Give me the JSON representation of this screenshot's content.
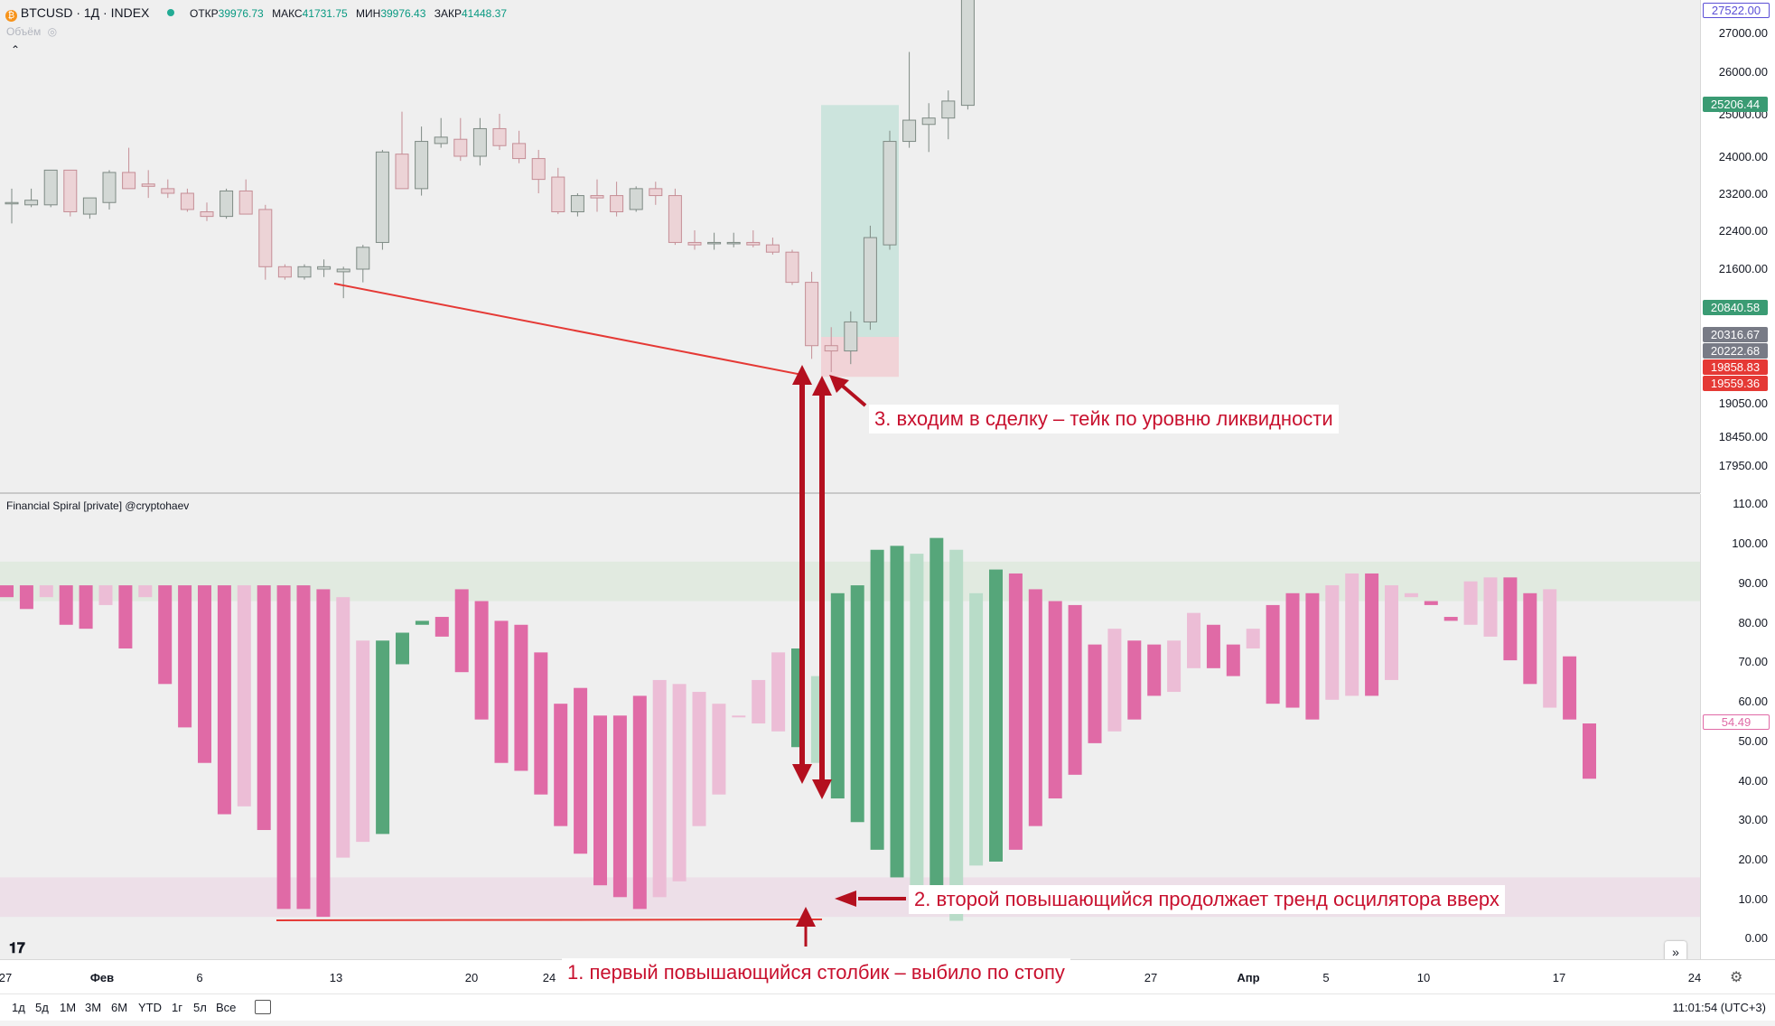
{
  "header": {
    "symbol": "BTCUSD · 1Д · INDEX",
    "ohlc": {
      "open_label": "ОТКР",
      "open": "39976.73",
      "high_label": "МАКС",
      "high": "41731.75",
      "low_label": "МИН",
      "low": "39976.43",
      "close_label": "ЗАКР",
      "close": "41448.37"
    },
    "volume_label": "Объём",
    "indicator_label": "Financial Spiral [private] @cryptohaev"
  },
  "price_axis": {
    "ticks": [
      "27000.00",
      "26000.00",
      "25000.00",
      "24000.00",
      "23200.00",
      "22400.00",
      "21600.00",
      "19050.00",
      "18450.00",
      "17950.00"
    ],
    "tags": [
      {
        "value": "27522.00",
        "color": "#ffffff",
        "text_color": "#5b4fd6"
      },
      {
        "value": "25206.44",
        "color": "#3a9b73"
      },
      {
        "value": "20840.58",
        "color": "#3a9b73"
      },
      {
        "value": "20316.67",
        "color": "#787b86"
      },
      {
        "value": "20222.68",
        "color": "#787b86"
      },
      {
        "value": "19858.83",
        "color": "#e53935"
      },
      {
        "value": "19559.36",
        "color": "#e53935"
      }
    ]
  },
  "osc_axis": {
    "ticks": [
      "110.00",
      "100.00",
      "90.00",
      "80.00",
      "70.00",
      "60.00",
      "50.00",
      "40.00",
      "30.00",
      "20.00",
      "10.00",
      "0.00"
    ],
    "last_value": "54.49"
  },
  "time_axis": {
    "labels": [
      "27",
      "Фев",
      "6",
      "13",
      "20",
      "24",
      "27",
      "Апр",
      "5",
      "10",
      "17",
      "24"
    ]
  },
  "timeframes": [
    "1д",
    "5д",
    "1М",
    "3М",
    "6М",
    "YTD",
    "1г",
    "5л",
    "Все"
  ],
  "clock": "11:01:54 (UTC+3)",
  "annotations": {
    "a1": "1. первый повышающийся столбик – выбило по стопу",
    "a2": "2. второй повышающийся продолжает тренд осцилятора вверх",
    "a3": "3. входим в сделку – тейк по уровню ликвидности"
  },
  "colors": {
    "bull_candle": "#d3d8d5",
    "bear_candle": "#ecd3d6",
    "osc_pink": "#e06aa6",
    "osc_pink_light": "#ecbdd6",
    "osc_green": "#56a67a",
    "osc_green_light": "#b8dcc8",
    "annotation_red": "#c8102e"
  },
  "chart_data": [
    {
      "type": "candlestick",
      "title": "BTCUSD · 1Д · INDEX",
      "ylim": [
        17500,
        27700
      ],
      "candles": [
        {
          "o": 23000,
          "h": 23300,
          "l": 22550,
          "c": 23000
        },
        {
          "o": 22950,
          "h": 23300,
          "l": 22900,
          "c": 23050
        },
        {
          "o": 22950,
          "h": 23600,
          "l": 22900,
          "c": 23700
        },
        {
          "o": 23700,
          "h": 23700,
          "l": 22700,
          "c": 22800
        },
        {
          "o": 22750,
          "h": 23100,
          "l": 22650,
          "c": 23100
        },
        {
          "o": 23000,
          "h": 23700,
          "l": 22850,
          "c": 23650
        },
        {
          "o": 23650,
          "h": 24200,
          "l": 23300,
          "c": 23300
        },
        {
          "o": 23400,
          "h": 23700,
          "l": 23100,
          "c": 23350
        },
        {
          "o": 23300,
          "h": 23500,
          "l": 23100,
          "c": 23200
        },
        {
          "o": 23200,
          "h": 23300,
          "l": 22800,
          "c": 22850
        },
        {
          "o": 22800,
          "h": 23000,
          "l": 22600,
          "c": 22700
        },
        {
          "o": 22700,
          "h": 23300,
          "l": 22650,
          "c": 23250
        },
        {
          "o": 23250,
          "h": 23500,
          "l": 22750,
          "c": 22750
        },
        {
          "o": 22850,
          "h": 22950,
          "l": 21400,
          "c": 21650
        },
        {
          "o": 21650,
          "h": 21700,
          "l": 21400,
          "c": 21450
        },
        {
          "o": 21450,
          "h": 21700,
          "l": 21400,
          "c": 21650
        },
        {
          "o": 21600,
          "h": 21800,
          "l": 21450,
          "c": 21650
        },
        {
          "o": 21550,
          "h": 21650,
          "l": 21050,
          "c": 21600
        },
        {
          "o": 21600,
          "h": 22100,
          "l": 21350,
          "c": 22050
        },
        {
          "o": 22150,
          "h": 24150,
          "l": 22000,
          "c": 24100
        },
        {
          "o": 24050,
          "h": 25050,
          "l": 23300,
          "c": 23300
        },
        {
          "o": 23300,
          "h": 24700,
          "l": 23150,
          "c": 24350
        },
        {
          "o": 24300,
          "h": 24900,
          "l": 24200,
          "c": 24450
        },
        {
          "o": 24400,
          "h": 24900,
          "l": 23900,
          "c": 24000
        },
        {
          "o": 24000,
          "h": 24900,
          "l": 23800,
          "c": 24650
        },
        {
          "o": 24650,
          "h": 25000,
          "l": 24150,
          "c": 24250
        },
        {
          "o": 24300,
          "h": 24600,
          "l": 23850,
          "c": 23950
        },
        {
          "o": 23950,
          "h": 24150,
          "l": 23200,
          "c": 23500
        },
        {
          "o": 23550,
          "h": 23750,
          "l": 22750,
          "c": 22800
        },
        {
          "o": 22800,
          "h": 23200,
          "l": 22700,
          "c": 23150
        },
        {
          "o": 23150,
          "h": 23500,
          "l": 22800,
          "c": 23100
        },
        {
          "o": 23150,
          "h": 23450,
          "l": 22700,
          "c": 22800
        },
        {
          "o": 22850,
          "h": 23350,
          "l": 22800,
          "c": 23300
        },
        {
          "o": 23300,
          "h": 23450,
          "l": 22950,
          "c": 23150
        },
        {
          "o": 23150,
          "h": 23300,
          "l": 22100,
          "c": 22150
        },
        {
          "o": 22150,
          "h": 22400,
          "l": 22000,
          "c": 22100
        },
        {
          "o": 22150,
          "h": 22350,
          "l": 22000,
          "c": 22150
        },
        {
          "o": 22150,
          "h": 22350,
          "l": 22050,
          "c": 22150
        },
        {
          "o": 22150,
          "h": 22400,
          "l": 22050,
          "c": 22100
        },
        {
          "o": 22100,
          "h": 22250,
          "l": 21900,
          "c": 21950
        },
        {
          "o": 21950,
          "h": 22000,
          "l": 21300,
          "c": 21350
        },
        {
          "o": 21350,
          "h": 21550,
          "l": 19900,
          "c": 20150
        },
        {
          "o": 20150,
          "h": 20500,
          "l": 19650,
          "c": 20050
        },
        {
          "o": 20050,
          "h": 20800,
          "l": 19800,
          "c": 20600
        },
        {
          "o": 20600,
          "h": 22500,
          "l": 20450,
          "c": 22250
        },
        {
          "o": 22100,
          "h": 24600,
          "l": 22000,
          "c": 24350
        },
        {
          "o": 24350,
          "h": 26500,
          "l": 24200,
          "c": 24850
        },
        {
          "o": 24750,
          "h": 25250,
          "l": 24100,
          "c": 24900
        },
        {
          "o": 24900,
          "h": 25550,
          "l": 24400,
          "c": 25300
        },
        {
          "o": 25200,
          "h": 28500,
          "l": 25100,
          "c": 28000
        }
      ]
    },
    {
      "type": "bar",
      "title": "Financial Spiral [private] @cryptohaev",
      "ylim": [
        0,
        110
      ],
      "values": [
        86,
        83,
        86,
        79,
        78,
        84,
        73,
        86,
        64,
        53,
        44,
        31,
        33,
        27,
        7,
        7,
        5,
        20,
        24,
        26,
        69,
        80,
        76,
        67,
        55,
        44,
        42,
        36,
        28,
        21,
        13,
        10,
        7,
        10,
        14,
        28,
        36,
        56,
        65,
        72,
        73,
        66,
        87,
        89,
        98,
        99,
        97,
        101,
        98,
        87,
        93,
        92,
        88,
        85,
        84,
        74,
        78,
        75,
        74,
        75,
        82,
        79,
        66,
        73,
        59,
        58,
        55,
        60,
        61,
        61,
        65,
        86,
        84,
        81,
        90,
        91,
        91,
        87,
        88,
        71,
        54
      ],
      "bases": [
        89,
        89,
        89,
        89,
        89,
        89,
        89,
        89,
        89,
        89,
        89,
        89,
        89,
        89,
        89,
        89,
        88,
        86,
        75,
        75,
        77,
        79,
        81,
        88,
        85,
        80,
        79,
        72,
        59,
        63,
        56,
        56,
        61,
        65,
        64,
        62,
        59,
        56,
        54,
        52,
        48,
        44,
        35,
        29,
        22,
        15,
        8,
        7,
        4,
        18,
        19,
        22,
        28,
        35,
        41,
        49,
        52,
        55,
        61,
        62,
        68,
        68,
        74,
        78,
        84,
        87,
        87,
        89,
        92,
        92,
        89,
        87,
        85,
        80,
        79,
        76,
        70,
        64,
        58,
        55,
        40
      ],
      "note": "bar segments as [base,value] pairs approximated from the oscillator panel"
    }
  ]
}
